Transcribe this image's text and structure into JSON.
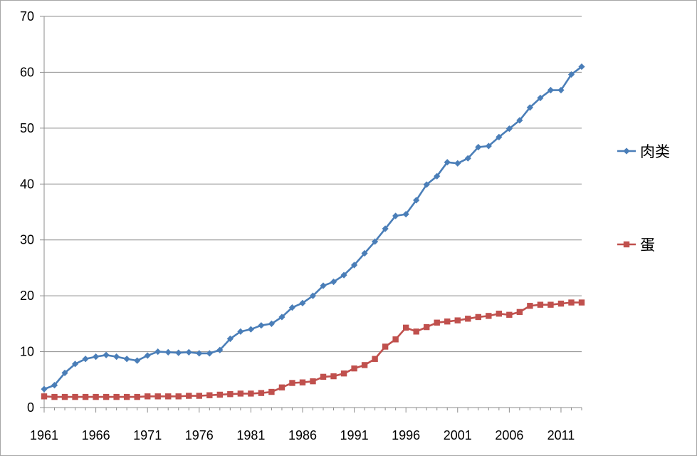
{
  "chart_data": {
    "type": "line",
    "title": "",
    "xlabel": "",
    "ylabel": "",
    "ylim": [
      0,
      70
    ],
    "yticks": [
      0,
      10,
      20,
      30,
      40,
      50,
      60,
      70
    ],
    "xlim": [
      1961,
      2013
    ],
    "xticks": [
      "1961",
      "1966",
      "1971",
      "1976",
      "1981",
      "1986",
      "1991",
      "1996",
      "2001",
      "2006",
      "2011"
    ],
    "grid": "horizontal",
    "legend_position": "right",
    "x": [
      1961,
      1962,
      1963,
      1964,
      1965,
      1966,
      1967,
      1968,
      1969,
      1970,
      1971,
      1972,
      1973,
      1974,
      1975,
      1976,
      1977,
      1978,
      1979,
      1980,
      1981,
      1982,
      1983,
      1984,
      1985,
      1986,
      1987,
      1988,
      1989,
      1990,
      1991,
      1992,
      1993,
      1994,
      1995,
      1996,
      1997,
      1998,
      1999,
      2000,
      2001,
      2002,
      2003,
      2004,
      2005,
      2006,
      2007,
      2008,
      2009,
      2010,
      2011,
      2012,
      2013
    ],
    "series": [
      {
        "name": "肉类",
        "color": "#4a7eb8",
        "marker": "diamond",
        "values": [
          3.3,
          4.0,
          6.2,
          7.8,
          8.7,
          9.1,
          9.4,
          9.1,
          8.7,
          8.4,
          9.3,
          10.0,
          9.9,
          9.8,
          9.9,
          9.7,
          9.7,
          10.3,
          12.3,
          13.6,
          14.0,
          14.7,
          15.0,
          16.2,
          17.9,
          18.7,
          20.0,
          21.8,
          22.5,
          23.7,
          25.5,
          27.6,
          29.7,
          32.0,
          34.3,
          34.6,
          37.1,
          39.9,
          41.4,
          43.9,
          43.7,
          44.6,
          46.6,
          46.8,
          48.4,
          49.9,
          51.4,
          53.7,
          55.4,
          56.8,
          56.8,
          59.6,
          61.0
        ]
      },
      {
        "name": "蛋",
        "color": "#c0504d",
        "marker": "square",
        "values": [
          2.0,
          1.9,
          1.9,
          1.9,
          1.9,
          1.9,
          1.9,
          1.9,
          1.9,
          1.9,
          2.0,
          2.0,
          2.0,
          2.0,
          2.1,
          2.1,
          2.2,
          2.3,
          2.4,
          2.5,
          2.5,
          2.6,
          2.8,
          3.6,
          4.4,
          4.5,
          4.7,
          5.5,
          5.6,
          6.1,
          7.0,
          7.6,
          8.7,
          10.9,
          12.2,
          14.3,
          13.6,
          14.4,
          15.2,
          15.4,
          15.6,
          15.9,
          16.2,
          16.4,
          16.8,
          16.6,
          17.1,
          18.2,
          18.4,
          18.4,
          18.6,
          18.8,
          18.8
        ]
      }
    ]
  }
}
